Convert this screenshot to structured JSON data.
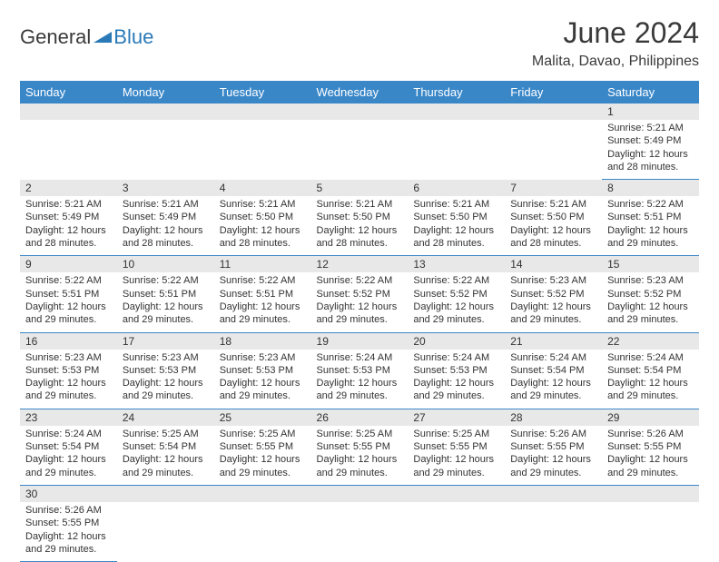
{
  "logo": {
    "general": "General",
    "blue": "Blue"
  },
  "title": "June 2024",
  "location": "Malita, Davao, Philippines",
  "dayHeaders": [
    "Sunday",
    "Monday",
    "Tuesday",
    "Wednesday",
    "Thursday",
    "Friday",
    "Saturday"
  ],
  "colors": {
    "headerBg": "#3a87c8",
    "headerText": "#ffffff",
    "dayNumBg": "#e8e8e8",
    "text": "#333333",
    "logoBlue": "#2a7ab8",
    "rowBorder": "#3a87c8"
  },
  "weeks": [
    [
      null,
      null,
      null,
      null,
      null,
      null,
      {
        "n": "1",
        "sr": "Sunrise: 5:21 AM",
        "ss": "Sunset: 5:49 PM",
        "dl1": "Daylight: 12 hours",
        "dl2": "and 28 minutes."
      }
    ],
    [
      {
        "n": "2",
        "sr": "Sunrise: 5:21 AM",
        "ss": "Sunset: 5:49 PM",
        "dl1": "Daylight: 12 hours",
        "dl2": "and 28 minutes."
      },
      {
        "n": "3",
        "sr": "Sunrise: 5:21 AM",
        "ss": "Sunset: 5:49 PM",
        "dl1": "Daylight: 12 hours",
        "dl2": "and 28 minutes."
      },
      {
        "n": "4",
        "sr": "Sunrise: 5:21 AM",
        "ss": "Sunset: 5:50 PM",
        "dl1": "Daylight: 12 hours",
        "dl2": "and 28 minutes."
      },
      {
        "n": "5",
        "sr": "Sunrise: 5:21 AM",
        "ss": "Sunset: 5:50 PM",
        "dl1": "Daylight: 12 hours",
        "dl2": "and 28 minutes."
      },
      {
        "n": "6",
        "sr": "Sunrise: 5:21 AM",
        "ss": "Sunset: 5:50 PM",
        "dl1": "Daylight: 12 hours",
        "dl2": "and 28 minutes."
      },
      {
        "n": "7",
        "sr": "Sunrise: 5:21 AM",
        "ss": "Sunset: 5:50 PM",
        "dl1": "Daylight: 12 hours",
        "dl2": "and 28 minutes."
      },
      {
        "n": "8",
        "sr": "Sunrise: 5:22 AM",
        "ss": "Sunset: 5:51 PM",
        "dl1": "Daylight: 12 hours",
        "dl2": "and 29 minutes."
      }
    ],
    [
      {
        "n": "9",
        "sr": "Sunrise: 5:22 AM",
        "ss": "Sunset: 5:51 PM",
        "dl1": "Daylight: 12 hours",
        "dl2": "and 29 minutes."
      },
      {
        "n": "10",
        "sr": "Sunrise: 5:22 AM",
        "ss": "Sunset: 5:51 PM",
        "dl1": "Daylight: 12 hours",
        "dl2": "and 29 minutes."
      },
      {
        "n": "11",
        "sr": "Sunrise: 5:22 AM",
        "ss": "Sunset: 5:51 PM",
        "dl1": "Daylight: 12 hours",
        "dl2": "and 29 minutes."
      },
      {
        "n": "12",
        "sr": "Sunrise: 5:22 AM",
        "ss": "Sunset: 5:52 PM",
        "dl1": "Daylight: 12 hours",
        "dl2": "and 29 minutes."
      },
      {
        "n": "13",
        "sr": "Sunrise: 5:22 AM",
        "ss": "Sunset: 5:52 PM",
        "dl1": "Daylight: 12 hours",
        "dl2": "and 29 minutes."
      },
      {
        "n": "14",
        "sr": "Sunrise: 5:23 AM",
        "ss": "Sunset: 5:52 PM",
        "dl1": "Daylight: 12 hours",
        "dl2": "and 29 minutes."
      },
      {
        "n": "15",
        "sr": "Sunrise: 5:23 AM",
        "ss": "Sunset: 5:52 PM",
        "dl1": "Daylight: 12 hours",
        "dl2": "and 29 minutes."
      }
    ],
    [
      {
        "n": "16",
        "sr": "Sunrise: 5:23 AM",
        "ss": "Sunset: 5:53 PM",
        "dl1": "Daylight: 12 hours",
        "dl2": "and 29 minutes."
      },
      {
        "n": "17",
        "sr": "Sunrise: 5:23 AM",
        "ss": "Sunset: 5:53 PM",
        "dl1": "Daylight: 12 hours",
        "dl2": "and 29 minutes."
      },
      {
        "n": "18",
        "sr": "Sunrise: 5:23 AM",
        "ss": "Sunset: 5:53 PM",
        "dl1": "Daylight: 12 hours",
        "dl2": "and 29 minutes."
      },
      {
        "n": "19",
        "sr": "Sunrise: 5:24 AM",
        "ss": "Sunset: 5:53 PM",
        "dl1": "Daylight: 12 hours",
        "dl2": "and 29 minutes."
      },
      {
        "n": "20",
        "sr": "Sunrise: 5:24 AM",
        "ss": "Sunset: 5:53 PM",
        "dl1": "Daylight: 12 hours",
        "dl2": "and 29 minutes."
      },
      {
        "n": "21",
        "sr": "Sunrise: 5:24 AM",
        "ss": "Sunset: 5:54 PM",
        "dl1": "Daylight: 12 hours",
        "dl2": "and 29 minutes."
      },
      {
        "n": "22",
        "sr": "Sunrise: 5:24 AM",
        "ss": "Sunset: 5:54 PM",
        "dl1": "Daylight: 12 hours",
        "dl2": "and 29 minutes."
      }
    ],
    [
      {
        "n": "23",
        "sr": "Sunrise: 5:24 AM",
        "ss": "Sunset: 5:54 PM",
        "dl1": "Daylight: 12 hours",
        "dl2": "and 29 minutes."
      },
      {
        "n": "24",
        "sr": "Sunrise: 5:25 AM",
        "ss": "Sunset: 5:54 PM",
        "dl1": "Daylight: 12 hours",
        "dl2": "and 29 minutes."
      },
      {
        "n": "25",
        "sr": "Sunrise: 5:25 AM",
        "ss": "Sunset: 5:55 PM",
        "dl1": "Daylight: 12 hours",
        "dl2": "and 29 minutes."
      },
      {
        "n": "26",
        "sr": "Sunrise: 5:25 AM",
        "ss": "Sunset: 5:55 PM",
        "dl1": "Daylight: 12 hours",
        "dl2": "and 29 minutes."
      },
      {
        "n": "27",
        "sr": "Sunrise: 5:25 AM",
        "ss": "Sunset: 5:55 PM",
        "dl1": "Daylight: 12 hours",
        "dl2": "and 29 minutes."
      },
      {
        "n": "28",
        "sr": "Sunrise: 5:26 AM",
        "ss": "Sunset: 5:55 PM",
        "dl1": "Daylight: 12 hours",
        "dl2": "and 29 minutes."
      },
      {
        "n": "29",
        "sr": "Sunrise: 5:26 AM",
        "ss": "Sunset: 5:55 PM",
        "dl1": "Daylight: 12 hours",
        "dl2": "and 29 minutes."
      }
    ],
    [
      {
        "n": "30",
        "sr": "Sunrise: 5:26 AM",
        "ss": "Sunset: 5:55 PM",
        "dl1": "Daylight: 12 hours",
        "dl2": "and 29 minutes."
      },
      null,
      null,
      null,
      null,
      null,
      null
    ]
  ]
}
